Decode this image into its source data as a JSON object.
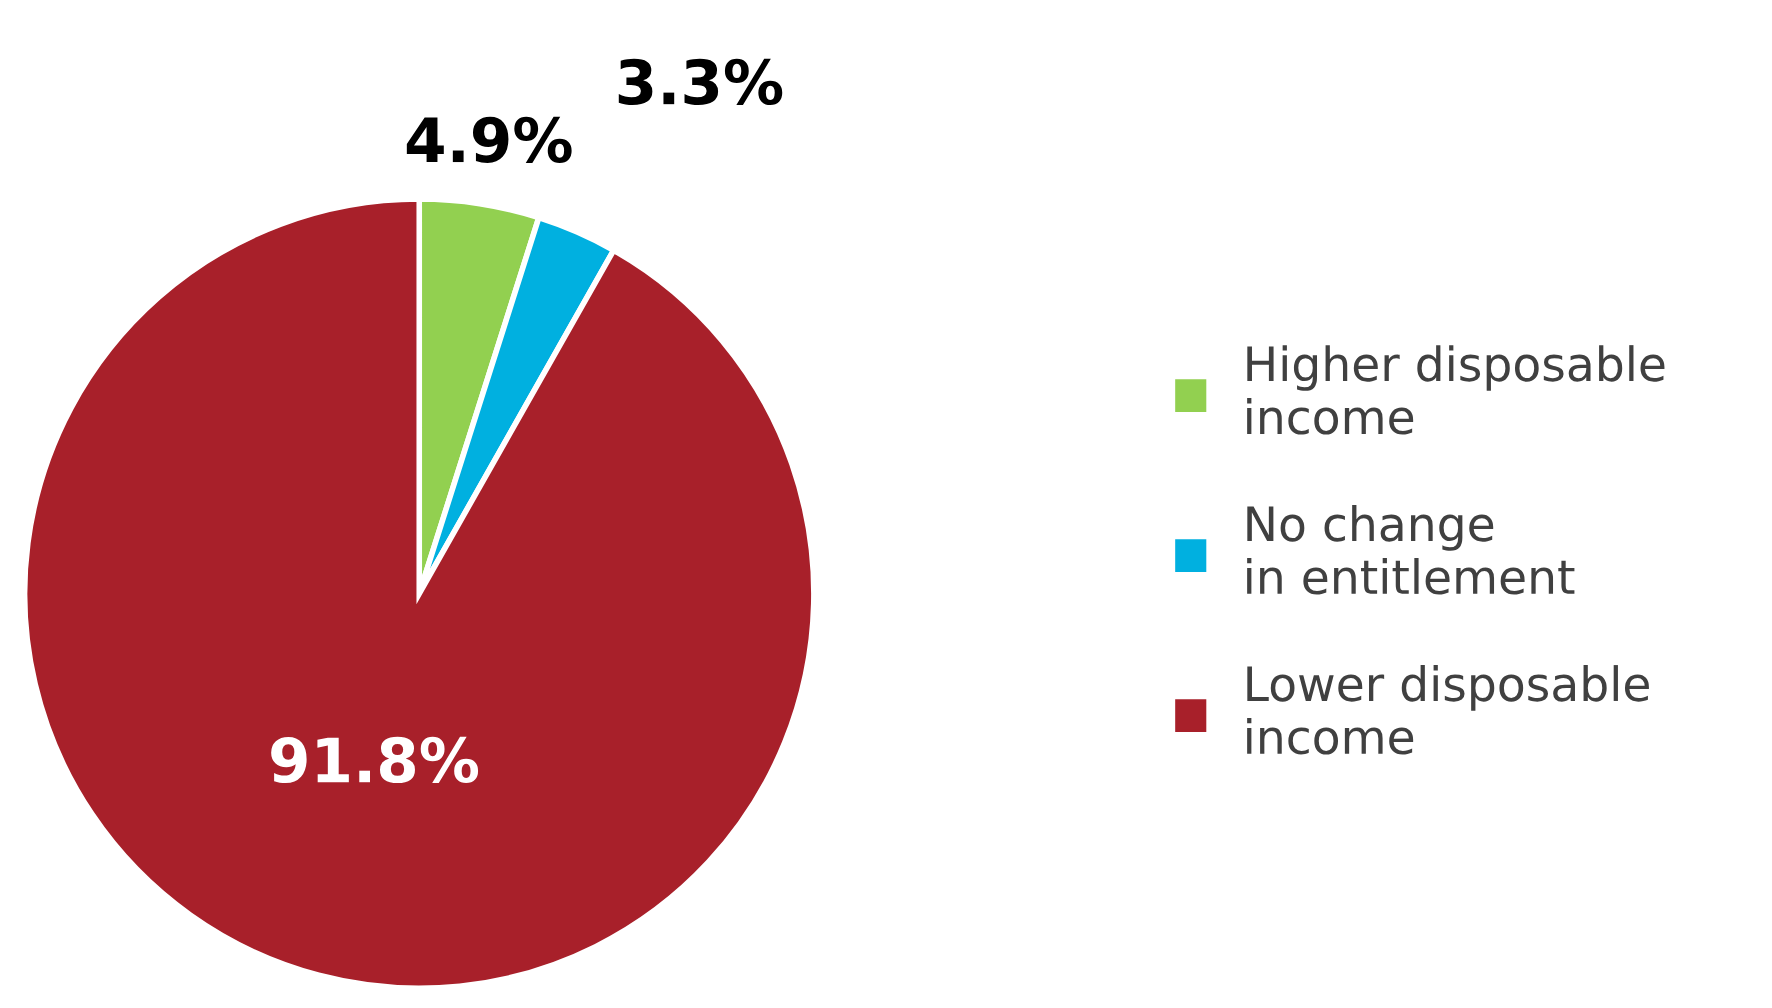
{
  "chart_data": {
    "type": "pie",
    "categories": [
      "Higher disposable income",
      "No change in entitlement",
      "Lower disposable income"
    ],
    "values": [
      4.9,
      3.3,
      91.8
    ],
    "colors": [
      "#92d050",
      "#00b0e0",
      "#a8202a"
    ],
    "value_labels": [
      "4.9%",
      "3.3%",
      "91.8%"
    ],
    "legend": "right"
  }
}
